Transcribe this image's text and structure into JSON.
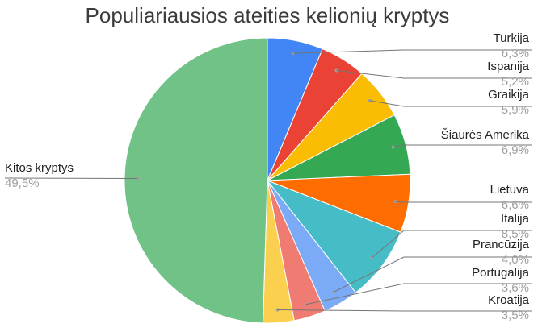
{
  "chart_data": {
    "type": "pie",
    "title": "Populiariausios ateities kelionių kryptys",
    "slices": [
      {
        "label": "Turkija",
        "value": 6.3,
        "display": "6,3%",
        "color": "#4285f4"
      },
      {
        "label": "Ispanija",
        "value": 5.2,
        "display": "5,2%",
        "color": "#ea4335"
      },
      {
        "label": "Graikija",
        "value": 5.9,
        "display": "5,9%",
        "color": "#fbbc04"
      },
      {
        "label": "Šiaurės Amerika",
        "value": 6.9,
        "display": "6,9%",
        "color": "#34a853"
      },
      {
        "label": "Lietuva",
        "value": 6.6,
        "display": "6,6%",
        "color": "#ff6d01"
      },
      {
        "label": "Italija",
        "value": 8.5,
        "display": "8,5%",
        "color": "#46bdc6"
      },
      {
        "label": "Prancūzija",
        "value": 4.0,
        "display": "4,0%",
        "color": "#7baaf7"
      },
      {
        "label": "Portugalija",
        "value": 3.6,
        "display": "3,6%",
        "color": "#f07b72"
      },
      {
        "label": "Kroatija",
        "value": 3.5,
        "display": "3,5%",
        "color": "#fcd04f"
      },
      {
        "label": "Kitos kryptys",
        "value": 49.5,
        "display": "49,5%",
        "color": "#71c287"
      }
    ],
    "start_angle": "12 o'clock",
    "direction": "clockwise",
    "label_style": "outside labels with leader lines"
  }
}
